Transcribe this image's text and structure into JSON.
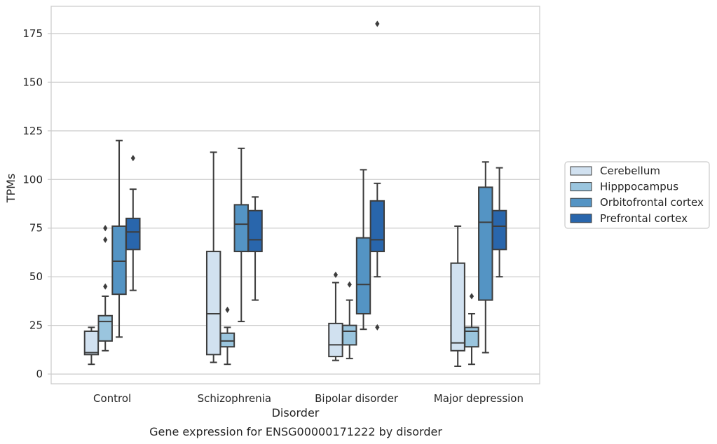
{
  "chart_data": {
    "type": "box",
    "caption": "Gene expression for ENSG00000171222 by disorder",
    "xlabel": "Disorder",
    "ylabel": "TPMs",
    "ylim": [
      -5,
      189
    ],
    "yticks": [
      "0",
      "25",
      "50",
      "75",
      "100",
      "125",
      "150",
      "175"
    ],
    "grid": true,
    "legend_position": "right",
    "categories": [
      "Control",
      "Schizophrenia",
      "Bipolar disorder",
      "Major depression"
    ],
    "series": [
      {
        "name": "Cerebellum",
        "color": "#d1e1f0",
        "boxes": [
          {
            "whisker_low": 5,
            "q1": 10,
            "median": 11,
            "q3": 22,
            "whisker_high": 24,
            "outliers": []
          },
          {
            "whisker_low": 6,
            "q1": 10,
            "median": 31,
            "q3": 63,
            "whisker_high": 114,
            "outliers": []
          },
          {
            "whisker_low": 7,
            "q1": 9,
            "median": 15,
            "q3": 26,
            "whisker_high": 47,
            "outliers": [
              51
            ]
          },
          {
            "whisker_low": 4,
            "q1": 12,
            "median": 16,
            "q3": 57,
            "whisker_high": 76,
            "outliers": []
          }
        ]
      },
      {
        "name": "Hipppocampus",
        "color": "#9ac5de",
        "boxes": [
          {
            "whisker_low": 12,
            "q1": 17,
            "median": 27,
            "q3": 30,
            "whisker_high": 40,
            "outliers": [
              45,
              69,
              75
            ]
          },
          {
            "whisker_low": 5,
            "q1": 14,
            "median": 17,
            "q3": 21,
            "whisker_high": 24,
            "outliers": [
              33
            ]
          },
          {
            "whisker_low": 8,
            "q1": 15,
            "median": 22,
            "q3": 25,
            "whisker_high": 38,
            "outliers": [
              46
            ]
          },
          {
            "whisker_low": 5,
            "q1": 14,
            "median": 22,
            "q3": 24,
            "whisker_high": 31,
            "outliers": [
              40
            ]
          }
        ]
      },
      {
        "name": "Orbitofrontal cortex",
        "color": "#5494c4",
        "boxes": [
          {
            "whisker_low": 19,
            "q1": 41,
            "median": 58,
            "q3": 76,
            "whisker_high": 120,
            "outliers": []
          },
          {
            "whisker_low": 27,
            "q1": 63,
            "median": 77,
            "q3": 87,
            "whisker_high": 116,
            "outliers": []
          },
          {
            "whisker_low": 23,
            "q1": 31,
            "median": 46,
            "q3": 70,
            "whisker_high": 105,
            "outliers": []
          },
          {
            "whisker_low": 11,
            "q1": 38,
            "median": 78,
            "q3": 96,
            "whisker_high": 109,
            "outliers": []
          }
        ]
      },
      {
        "name": "Prefrontal cortex",
        "color": "#2966ac",
        "boxes": [
          {
            "whisker_low": 43,
            "q1": 64,
            "median": 73,
            "q3": 80,
            "whisker_high": 95,
            "outliers": [
              111
            ]
          },
          {
            "whisker_low": 38,
            "q1": 63,
            "median": 69,
            "q3": 84,
            "whisker_high": 91,
            "outliers": []
          },
          {
            "whisker_low": 50,
            "q1": 63,
            "median": 69,
            "q3": 89,
            "whisker_high": 98,
            "outliers": [
              24,
              180
            ]
          },
          {
            "whisker_low": 50,
            "q1": 64,
            "median": 76,
            "q3": 84,
            "whisker_high": 106,
            "outliers": []
          }
        ]
      }
    ]
  }
}
